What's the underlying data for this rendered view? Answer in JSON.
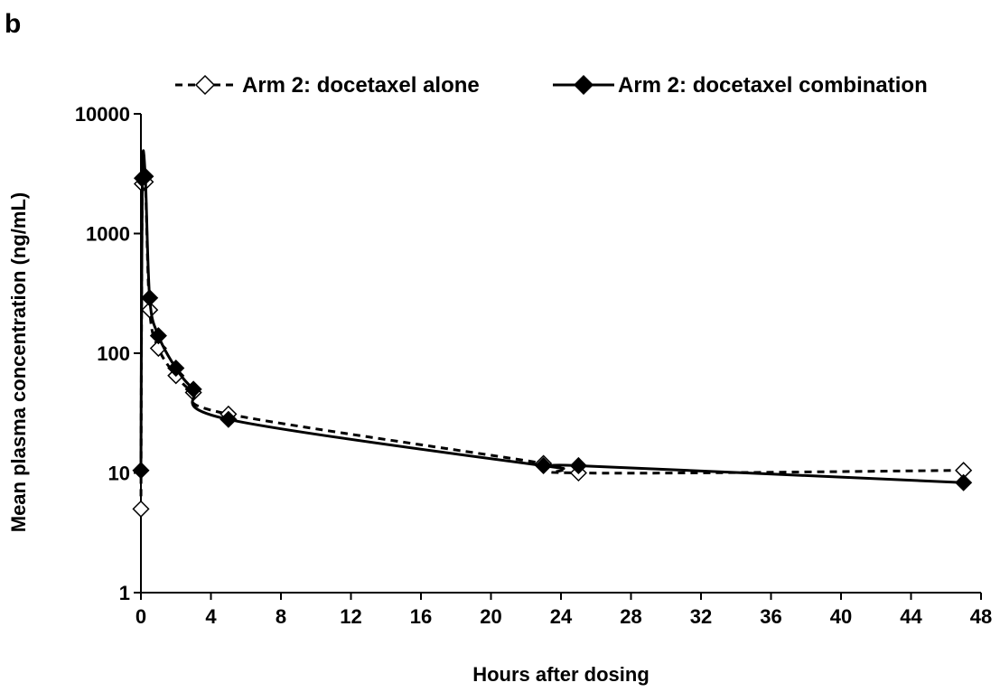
{
  "panel_label": "b",
  "chart_data": {
    "type": "line",
    "xlabel": "Hours after dosing",
    "ylabel": "Mean plasma concentration (ng/mL)",
    "xlim": [
      0,
      48
    ],
    "ylim": [
      1,
      10000
    ],
    "y_scale": "log",
    "x_ticks": [
      0,
      4,
      8,
      12,
      16,
      20,
      24,
      28,
      32,
      36,
      40,
      44,
      48
    ],
    "x_tick_labels": [
      "0",
      "4",
      "8",
      "12",
      "16",
      "20",
      "24",
      "28",
      "32",
      "36",
      "40",
      "44",
      "48"
    ],
    "y_ticks": [
      1,
      10,
      100,
      1000,
      10000
    ],
    "y_tick_labels": [
      "1",
      "10",
      "100",
      "1000",
      "10000"
    ],
    "grid": false,
    "legend_position": "top",
    "series": [
      {
        "name": "Arm 2: docetaxel alone",
        "line_style": "dashed",
        "marker": "open-diamond",
        "color": "#000000",
        "x": [
          0,
          0.08,
          0.25,
          0.5,
          1,
          2,
          3,
          5,
          23,
          25,
          47
        ],
        "y": [
          5,
          2600,
          2700,
          230,
          110,
          65,
          47,
          31,
          12,
          10,
          10.5
        ]
      },
      {
        "name": "Arm 2: docetaxel combination",
        "line_style": "solid",
        "marker": "filled-diamond",
        "color": "#000000",
        "x": [
          0,
          0.08,
          0.25,
          0.5,
          1,
          2,
          3,
          5,
          23,
          25,
          47
        ],
        "y": [
          10.5,
          2900,
          3000,
          290,
          140,
          75,
          50,
          28,
          11.5,
          11.5,
          8.3
        ]
      }
    ]
  }
}
